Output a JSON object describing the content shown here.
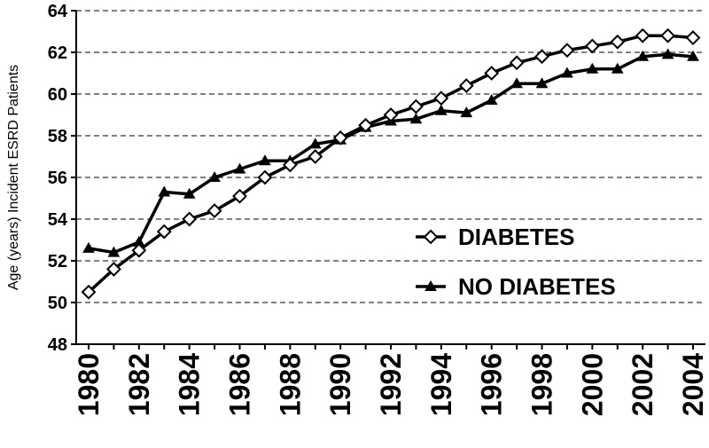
{
  "chart_data": {
    "type": "line",
    "title": "",
    "xlabel": "",
    "ylabel": "Age (years) Incident ESRD Patients",
    "x": [
      1980,
      1981,
      1982,
      1983,
      1984,
      1985,
      1986,
      1987,
      1988,
      1989,
      1990,
      1991,
      1992,
      1993,
      1994,
      1995,
      1996,
      1997,
      1998,
      1999,
      2000,
      2001,
      2002,
      2003,
      2004
    ],
    "x_tick_labels": [
      "1980",
      "1982",
      "1984",
      "1986",
      "1988",
      "1990",
      "1992",
      "1994",
      "1996",
      "1998",
      "2000",
      "2002",
      "2004"
    ],
    "y_tick_labels": [
      "48",
      "50",
      "52",
      "54",
      "56",
      "58",
      "60",
      "62",
      "64"
    ],
    "ylim": [
      48,
      64
    ],
    "grid": "horizontal dashed",
    "legend_position": "right",
    "series": [
      {
        "name": "DIABETES",
        "marker": "diamond-open",
        "color": "#000000",
        "values": [
          50.5,
          51.6,
          52.5,
          53.4,
          54.0,
          54.4,
          55.1,
          56.0,
          56.6,
          57.0,
          57.9,
          58.5,
          59.0,
          59.4,
          59.8,
          60.4,
          61.0,
          61.5,
          61.8,
          62.1,
          62.3,
          62.5,
          62.8,
          62.8,
          62.7
        ]
      },
      {
        "name": "NO DIABETES",
        "marker": "triangle-filled",
        "color": "#000000",
        "values": [
          52.6,
          52.4,
          52.9,
          55.3,
          55.2,
          56.0,
          56.4,
          56.8,
          56.8,
          57.6,
          57.8,
          58.4,
          58.7,
          58.8,
          59.2,
          59.1,
          59.7,
          60.5,
          60.5,
          61.0,
          61.2,
          61.2,
          61.8,
          61.9,
          61.8
        ]
      }
    ]
  }
}
